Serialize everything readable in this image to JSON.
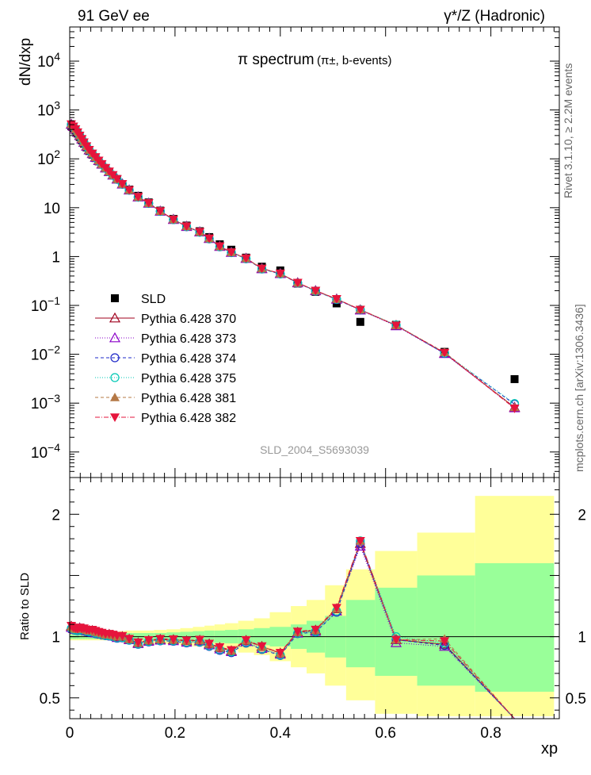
{
  "header": {
    "left": "91 GeV ee",
    "right": "γ*/Z (Hadronic)"
  },
  "side_labels": {
    "rivet": "Rivet 3.1.10, ≥ 2.2M events",
    "mcplots": "mcplots.cern.ch [arXiv:1306.3436]"
  },
  "chart_data": {
    "type": "line",
    "title": "π spectrum",
    "subtitle": "(π±, b-events)",
    "analysis_id": "SLD_2004_S5693039",
    "xlabel": "xp",
    "ylabel": "dN/dxp",
    "ratio_ylabel": "Ratio to SLD",
    "xlim": [
      0,
      0.93
    ],
    "ylim": [
      3e-05,
      50000
    ],
    "yscale": "log",
    "ratio_ylim": [
      0.33,
      2.3
    ],
    "x_ticks": [
      "0",
      "0.2",
      "0.4",
      "0.6",
      "0.8"
    ],
    "x_tick_values": [
      0,
      0.2,
      0.4,
      0.6,
      0.8
    ],
    "y_ticks": [
      "10^-4",
      "10^-3",
      "10^-2",
      "10^-1",
      "1",
      "10",
      "10^2",
      "10^3",
      "10^4"
    ],
    "y_tick_values": [
      0.0001,
      0.001,
      0.01,
      0.1,
      1,
      10,
      100,
      1000,
      10000
    ],
    "ratio_ticks": [
      "0.5",
      "1",
      "2"
    ],
    "ratio_tick_values": [
      0.5,
      1,
      2
    ],
    "legend_position": "middle-left",
    "x": [
      0.003,
      0.007,
      0.011,
      0.015,
      0.019,
      0.023,
      0.027,
      0.032,
      0.037,
      0.043,
      0.049,
      0.055,
      0.061,
      0.068,
      0.075,
      0.082,
      0.09,
      0.1,
      0.113,
      0.13,
      0.15,
      0.172,
      0.197,
      0.222,
      0.247,
      0.265,
      0.285,
      0.307,
      0.335,
      0.365,
      0.4,
      0.433,
      0.467,
      0.507,
      0.552,
      0.62,
      0.712,
      0.845
    ],
    "series": [
      {
        "name": "SLD",
        "color": "#000000",
        "marker": "square",
        "values": [
          470,
          430,
          380,
          330,
          280,
          240,
          205,
          172,
          145,
          122,
          104,
          89,
          76,
          64,
          54,
          46,
          38.5,
          30.5,
          23.5,
          17.5,
          12.8,
          8.7,
          5.9,
          4.3,
          3.3,
          2.5,
          1.78,
          1.38,
          0.95,
          0.62,
          0.52,
          0.28,
          0.19,
          0.11,
          0.046,
          0.04,
          0.0112,
          0.0031
        ]
      },
      {
        "name": "Pythia 6.428 370",
        "color": "#a0001e",
        "marker": "triangle-open",
        "dash": "",
        "values": [
          510,
          460,
          405,
          350,
          300,
          255,
          218,
          181,
          152,
          128,
          108,
          92,
          78,
          65,
          55,
          46.5,
          38.5,
          30.5,
          23.0,
          16.6,
          12.4,
          8.5,
          5.75,
          4.15,
          3.2,
          2.35,
          1.62,
          1.22,
          0.92,
          0.57,
          0.45,
          0.29,
          0.2,
          0.135,
          0.081,
          0.039,
          0.0105,
          0.00082
        ]
      },
      {
        "name": "Pythia 6.428 373",
        "color": "#8a00c8",
        "marker": "triangle-open",
        "dash": "1,2",
        "values": [
          505,
          458,
          402,
          348,
          299,
          253,
          217,
          180,
          151,
          127,
          107,
          91.5,
          77.5,
          64.8,
          54.6,
          46.2,
          38.2,
          30.3,
          22.9,
          16.5,
          12.3,
          8.45,
          5.7,
          4.1,
          3.18,
          2.33,
          1.6,
          1.21,
          0.91,
          0.56,
          0.445,
          0.288,
          0.198,
          0.133,
          0.08,
          0.038,
          0.0103,
          0.0008
        ]
      },
      {
        "name": "Pythia 6.428 374",
        "color": "#1e28c8",
        "marker": "circle-open",
        "dash": "4,3",
        "values": [
          500,
          455,
          400,
          346,
          297,
          252,
          216,
          179,
          150,
          126.5,
          106.5,
          91,
          77,
          64.5,
          54.3,
          46,
          38,
          30.2,
          22.8,
          16.4,
          12.25,
          8.4,
          5.68,
          4.08,
          3.15,
          2.3,
          1.58,
          1.2,
          0.9,
          0.555,
          0.44,
          0.287,
          0.197,
          0.132,
          0.081,
          0.039,
          0.0104,
          0.00095
        ]
      },
      {
        "name": "Pythia 6.428 375",
        "color": "#00c8b4",
        "marker": "circle-open",
        "dash": "1,2",
        "values": [
          502,
          456,
          401,
          347,
          298,
          253,
          217,
          180,
          151,
          127,
          107,
          91.2,
          77.2,
          64.6,
          54.4,
          46.1,
          38.1,
          30.3,
          22.85,
          16.45,
          12.3,
          8.42,
          5.7,
          4.1,
          3.16,
          2.31,
          1.59,
          1.21,
          0.905,
          0.558,
          0.442,
          0.288,
          0.198,
          0.133,
          0.082,
          0.04,
          0.0106,
          0.00098
        ]
      },
      {
        "name": "Pythia 6.428 381",
        "color": "#b47846",
        "marker": "triangle-filled",
        "dash": "4,3",
        "values": [
          508,
          460,
          404,
          350,
          300,
          255,
          218,
          181,
          152,
          128,
          108,
          92,
          78,
          65,
          55,
          46.5,
          38.5,
          30.5,
          23.0,
          16.6,
          12.4,
          8.5,
          5.75,
          4.15,
          3.2,
          2.35,
          1.62,
          1.22,
          0.92,
          0.57,
          0.45,
          0.29,
          0.2,
          0.135,
          0.082,
          0.039,
          0.011,
          0.00082
        ]
      },
      {
        "name": "Pythia 6.428 382",
        "color": "#e6143c",
        "marker": "triangle-down-filled",
        "dash": "6,2,1,2",
        "values": [
          512,
          462,
          406,
          351,
          301,
          256,
          219,
          182,
          153,
          129,
          109,
          92.5,
          78.5,
          65.5,
          55.3,
          46.8,
          38.8,
          30.7,
          23.1,
          16.7,
          12.45,
          8.55,
          5.78,
          4.17,
          3.22,
          2.36,
          1.63,
          1.23,
          0.925,
          0.572,
          0.452,
          0.292,
          0.201,
          0.136,
          0.082,
          0.039,
          0.0108,
          0.00078
        ]
      }
    ],
    "ratio_bands": {
      "edges": [
        0.0,
        0.005,
        0.009,
        0.013,
        0.017,
        0.021,
        0.025,
        0.029,
        0.034,
        0.04,
        0.046,
        0.052,
        0.058,
        0.064,
        0.071,
        0.078,
        0.086,
        0.094,
        0.106,
        0.12,
        0.14,
        0.16,
        0.184,
        0.21,
        0.234,
        0.256,
        0.275,
        0.295,
        0.32,
        0.35,
        0.38,
        0.42,
        0.45,
        0.485,
        0.525,
        0.58,
        0.66,
        0.77,
        0.92
      ],
      "stat_sys_inner": [
        [
          0.98,
          1.02
        ],
        [
          0.98,
          1.02
        ],
        [
          0.98,
          1.02
        ],
        [
          0.98,
          1.02
        ],
        [
          0.98,
          1.02
        ],
        [
          0.98,
          1.02
        ],
        [
          0.98,
          1.02
        ],
        [
          0.98,
          1.02
        ],
        [
          0.98,
          1.02
        ],
        [
          0.98,
          1.02
        ],
        [
          0.98,
          1.02
        ],
        [
          0.98,
          1.02
        ],
        [
          0.98,
          1.02
        ],
        [
          0.98,
          1.02
        ],
        [
          0.98,
          1.02
        ],
        [
          0.98,
          1.02
        ],
        [
          0.98,
          1.02
        ],
        [
          0.975,
          1.025
        ],
        [
          0.97,
          1.03
        ],
        [
          0.97,
          1.03
        ],
        [
          0.97,
          1.03
        ],
        [
          0.97,
          1.03
        ],
        [
          0.965,
          1.035
        ],
        [
          0.96,
          1.04
        ],
        [
          0.955,
          1.045
        ],
        [
          0.95,
          1.05
        ],
        [
          0.95,
          1.05
        ],
        [
          0.945,
          1.055
        ],
        [
          0.94,
          1.06
        ],
        [
          0.93,
          1.07
        ],
        [
          0.92,
          1.08
        ],
        [
          0.9,
          1.1
        ],
        [
          0.87,
          1.13
        ],
        [
          0.83,
          1.17
        ],
        [
          0.75,
          1.3
        ],
        [
          0.68,
          1.4
        ],
        [
          0.6,
          1.5
        ],
        [
          0.55,
          1.6
        ],
        [
          0.4,
          1.7
        ]
      ],
      "total": [
        [
          0.97,
          1.03
        ],
        [
          0.97,
          1.03
        ],
        [
          0.97,
          1.03
        ],
        [
          0.97,
          1.03
        ],
        [
          0.97,
          1.03
        ],
        [
          0.97,
          1.03
        ],
        [
          0.97,
          1.03
        ],
        [
          0.97,
          1.03
        ],
        [
          0.97,
          1.03
        ],
        [
          0.97,
          1.03
        ],
        [
          0.97,
          1.03
        ],
        [
          0.97,
          1.03
        ],
        [
          0.97,
          1.03
        ],
        [
          0.97,
          1.03
        ],
        [
          0.97,
          1.03
        ],
        [
          0.965,
          1.035
        ],
        [
          0.96,
          1.04
        ],
        [
          0.955,
          1.045
        ],
        [
          0.95,
          1.05
        ],
        [
          0.95,
          1.05
        ],
        [
          0.95,
          1.05
        ],
        [
          0.945,
          1.055
        ],
        [
          0.94,
          1.06
        ],
        [
          0.93,
          1.07
        ],
        [
          0.92,
          1.08
        ],
        [
          0.91,
          1.09
        ],
        [
          0.9,
          1.1
        ],
        [
          0.89,
          1.11
        ],
        [
          0.87,
          1.13
        ],
        [
          0.85,
          1.15
        ],
        [
          0.8,
          1.2
        ],
        [
          0.75,
          1.25
        ],
        [
          0.7,
          1.3
        ],
        [
          0.6,
          1.42
        ],
        [
          0.48,
          1.55
        ],
        [
          0.37,
          1.7
        ],
        [
          0.35,
          1.85
        ],
        [
          0.35,
          2.15
        ],
        [
          0.35,
          2.25
        ]
      ]
    }
  }
}
